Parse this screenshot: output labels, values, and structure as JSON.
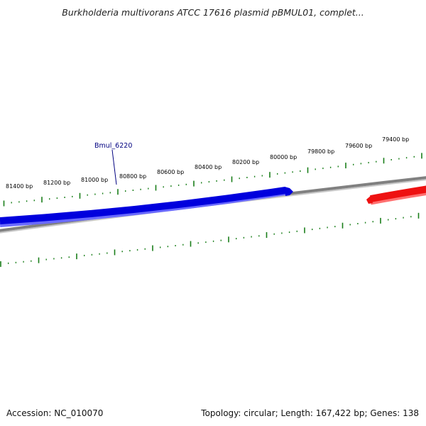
{
  "title": "Burkholderia multivorans ATCC 17616 plasmid pBMUL01, complet...",
  "footer": {
    "accession_label": "Accession:",
    "accession": "NC_010070",
    "summary": "Topology: circular; Length: 167,422 bp; Genes: 138"
  },
  "ruler": {
    "labels": [
      "81400 bp",
      "81200 bp",
      "81000 bp",
      "80800 bp",
      "80600 bp",
      "80400 bp",
      "80200 bp",
      "80000 bp",
      "79800 bp",
      "79600 bp",
      "79400 bp"
    ],
    "tick_color": "#1a7f1a"
  },
  "genes": [
    {
      "name": "Bmul_6220",
      "strand": "forward",
      "color": "#0000dd",
      "labeled": true
    },
    {
      "name": "",
      "strand": "reverse",
      "color": "#ee1111",
      "labeled": false
    }
  ],
  "backbone_color": "#808080"
}
